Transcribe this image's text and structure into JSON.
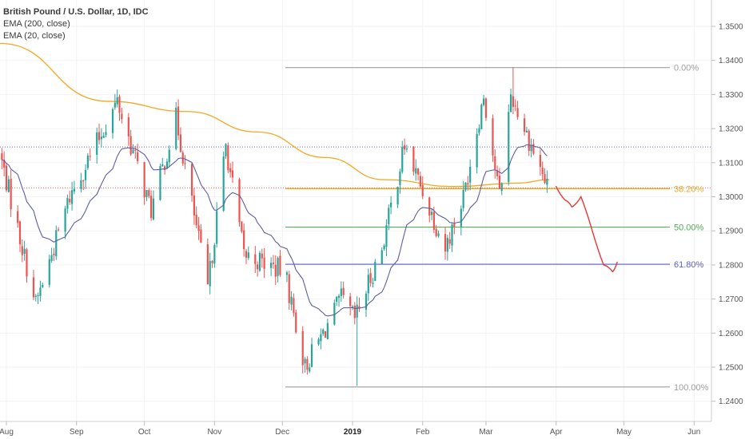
{
  "legend": {
    "title": "British Pound / U.S. Dollar, 1D, IDC",
    "ema200": "EMA (200, close)",
    "ema20": "EMA (20, close)"
  },
  "colors": {
    "up": "#26a69a",
    "down": "#ef5350",
    "ema200": "#f5a623",
    "ema20": "#5b5ea6",
    "fib0": "#9e9e9e",
    "fib382": "#f5a623",
    "fib50": "#4caf50",
    "fib618": "#5b5bd6",
    "fib100": "#9e9e9e",
    "hline_upper": "#5b5bd6",
    "hline_lower": "#ef5350",
    "drawing": "#e53935"
  },
  "chart_data": {
    "type": "candlestick",
    "y_axis_ticks": [
      "1.3500",
      "1.3400",
      "1.3300",
      "1.3200",
      "1.3100",
      "1.3000",
      "1.2900",
      "1.2800",
      "1.2700",
      "1.2600",
      "1.2500",
      "1.2400"
    ],
    "ylim": [
      1.2363,
      1.3535
    ],
    "x_axis_ticks": [
      {
        "label": "Aug",
        "bold": false
      },
      {
        "label": "Sep",
        "bold": false
      },
      {
        "label": "Oct",
        "bold": false
      },
      {
        "label": "Nov",
        "bold": false
      },
      {
        "label": "Dec",
        "bold": false
      },
      {
        "label": "2019",
        "bold": true
      },
      {
        "label": "Feb",
        "bold": false
      },
      {
        "label": "Mar",
        "bold": false
      },
      {
        "label": "Apr",
        "bold": false
      },
      {
        "label": "May",
        "bold": false
      },
      {
        "label": "Jun",
        "bold": false
      }
    ],
    "fibonacci": {
      "levels": [
        {
          "label": "0.00%",
          "price": 1.3379
        },
        {
          "label": "38.20%",
          "price": 1.3024
        },
        {
          "label": "50.00%",
          "price": 1.2911
        },
        {
          "label": "61.80%",
          "price": 1.2802
        },
        {
          "label": "100.00%",
          "price": 1.2442
        }
      ]
    },
    "horizontal_lines": [
      1.3146,
      1.3026
    ],
    "anchors": [
      {
        "date": "Jul 30",
        "price": 1.313
      },
      {
        "date": "Aug 15",
        "price": 1.2685
      },
      {
        "date": "Aug 30",
        "price": 1.3
      },
      {
        "date": "Sep 20",
        "price": 1.328
      },
      {
        "date": "Oct 5",
        "price": 1.296
      },
      {
        "date": "Oct 16",
        "price": 1.323
      },
      {
        "date": "Oct 30",
        "price": 1.273
      },
      {
        "date": "Nov 7",
        "price": 1.315
      },
      {
        "date": "Nov 15",
        "price": 1.283
      },
      {
        "date": "Dec 3",
        "price": 1.278
      },
      {
        "date": "Dec 12",
        "price": 1.25
      },
      {
        "date": "Dec 28",
        "price": 1.27
      },
      {
        "date": "Jan 3",
        "price": 1.264
      },
      {
        "date": "Jan 15",
        "price": 1.285
      },
      {
        "date": "Jan 25",
        "price": 1.315
      },
      {
        "date": "Feb 12",
        "price": 1.285
      },
      {
        "date": "Feb 20",
        "price": 1.3
      },
      {
        "date": "Mar 1",
        "price": 1.33
      },
      {
        "date": "Mar 8",
        "price": 1.3
      },
      {
        "date": "Mar 13",
        "price": 1.33
      },
      {
        "date": "Mar 22",
        "price": 1.315
      },
      {
        "date": "Mar 29",
        "price": 1.303
      }
    ],
    "ema200": [
      {
        "date": "Jul 23",
        "price": 1.345
      },
      {
        "date": "Sep 15",
        "price": 1.328
      },
      {
        "date": "Oct 20",
        "price": 1.325
      },
      {
        "date": "Nov 20",
        "price": 1.319
      },
      {
        "date": "Dec 20",
        "price": 1.3115
      },
      {
        "date": "Jan 15",
        "price": 1.305
      },
      {
        "date": "Feb 15",
        "price": 1.303
      },
      {
        "date": "Mar 15",
        "price": 1.304
      },
      {
        "date": "Mar 29",
        "price": 1.305
      }
    ],
    "projection": [
      {
        "date": "Apr 1",
        "price": 1.303
      },
      {
        "date": "Apr 5",
        "price": 1.299
      },
      {
        "date": "Apr 8",
        "price": 1.297
      },
      {
        "date": "Apr 12",
        "price": 1.3
      },
      {
        "date": "Apr 17",
        "price": 1.29
      },
      {
        "date": "Apr 22",
        "price": 1.28
      },
      {
        "date": "Apr 26",
        "price": 1.278
      },
      {
        "date": "Apr 28",
        "price": 1.2808
      }
    ]
  }
}
